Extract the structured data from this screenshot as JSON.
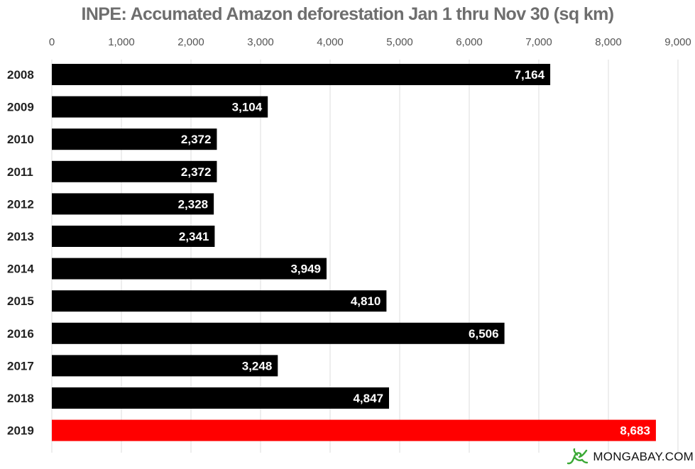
{
  "chart_data": {
    "type": "bar",
    "orientation": "horizontal",
    "title": "INPE: Accumated Amazon deforestation Jan 1 thru Nov 30 (sq km)",
    "xlabel": "",
    "ylabel": "",
    "xlim": [
      0,
      9000
    ],
    "x_ticks": [
      0,
      1000,
      2000,
      3000,
      4000,
      5000,
      6000,
      7000,
      8000,
      9000
    ],
    "x_tick_labels": [
      "0",
      "1,000",
      "2,000",
      "3,000",
      "4,000",
      "5,000",
      "6,000",
      "7,000",
      "8,000",
      "9,000"
    ],
    "x_axis_position": "top",
    "grid": true,
    "categories": [
      "2008",
      "2009",
      "2010",
      "2011",
      "2012",
      "2013",
      "2014",
      "2015",
      "2016",
      "2017",
      "2018",
      "2019"
    ],
    "values": [
      7164,
      3104,
      2372,
      2372,
      2328,
      2341,
      3949,
      4810,
      6506,
      3248,
      4847,
      8683
    ],
    "value_labels": [
      "7,164",
      "3,104",
      "2,372",
      "2,372",
      "2,328",
      "2,341",
      "3,949",
      "4,810",
      "6,506",
      "3,248",
      "4,847",
      "8,683"
    ],
    "colors": {
      "default_bar": "#000000",
      "highlight_bar": "#ff0000",
      "highlight_category": "2019",
      "grid": "#dddddd",
      "title": "#6e6e6e",
      "tick_label": "#555555",
      "category_label": "#222222",
      "value_label": "#ffffff"
    }
  },
  "watermark": {
    "text": "MONGABAY.COM",
    "icon": "gecko-logo-icon",
    "icon_color": "#3aa935"
  }
}
